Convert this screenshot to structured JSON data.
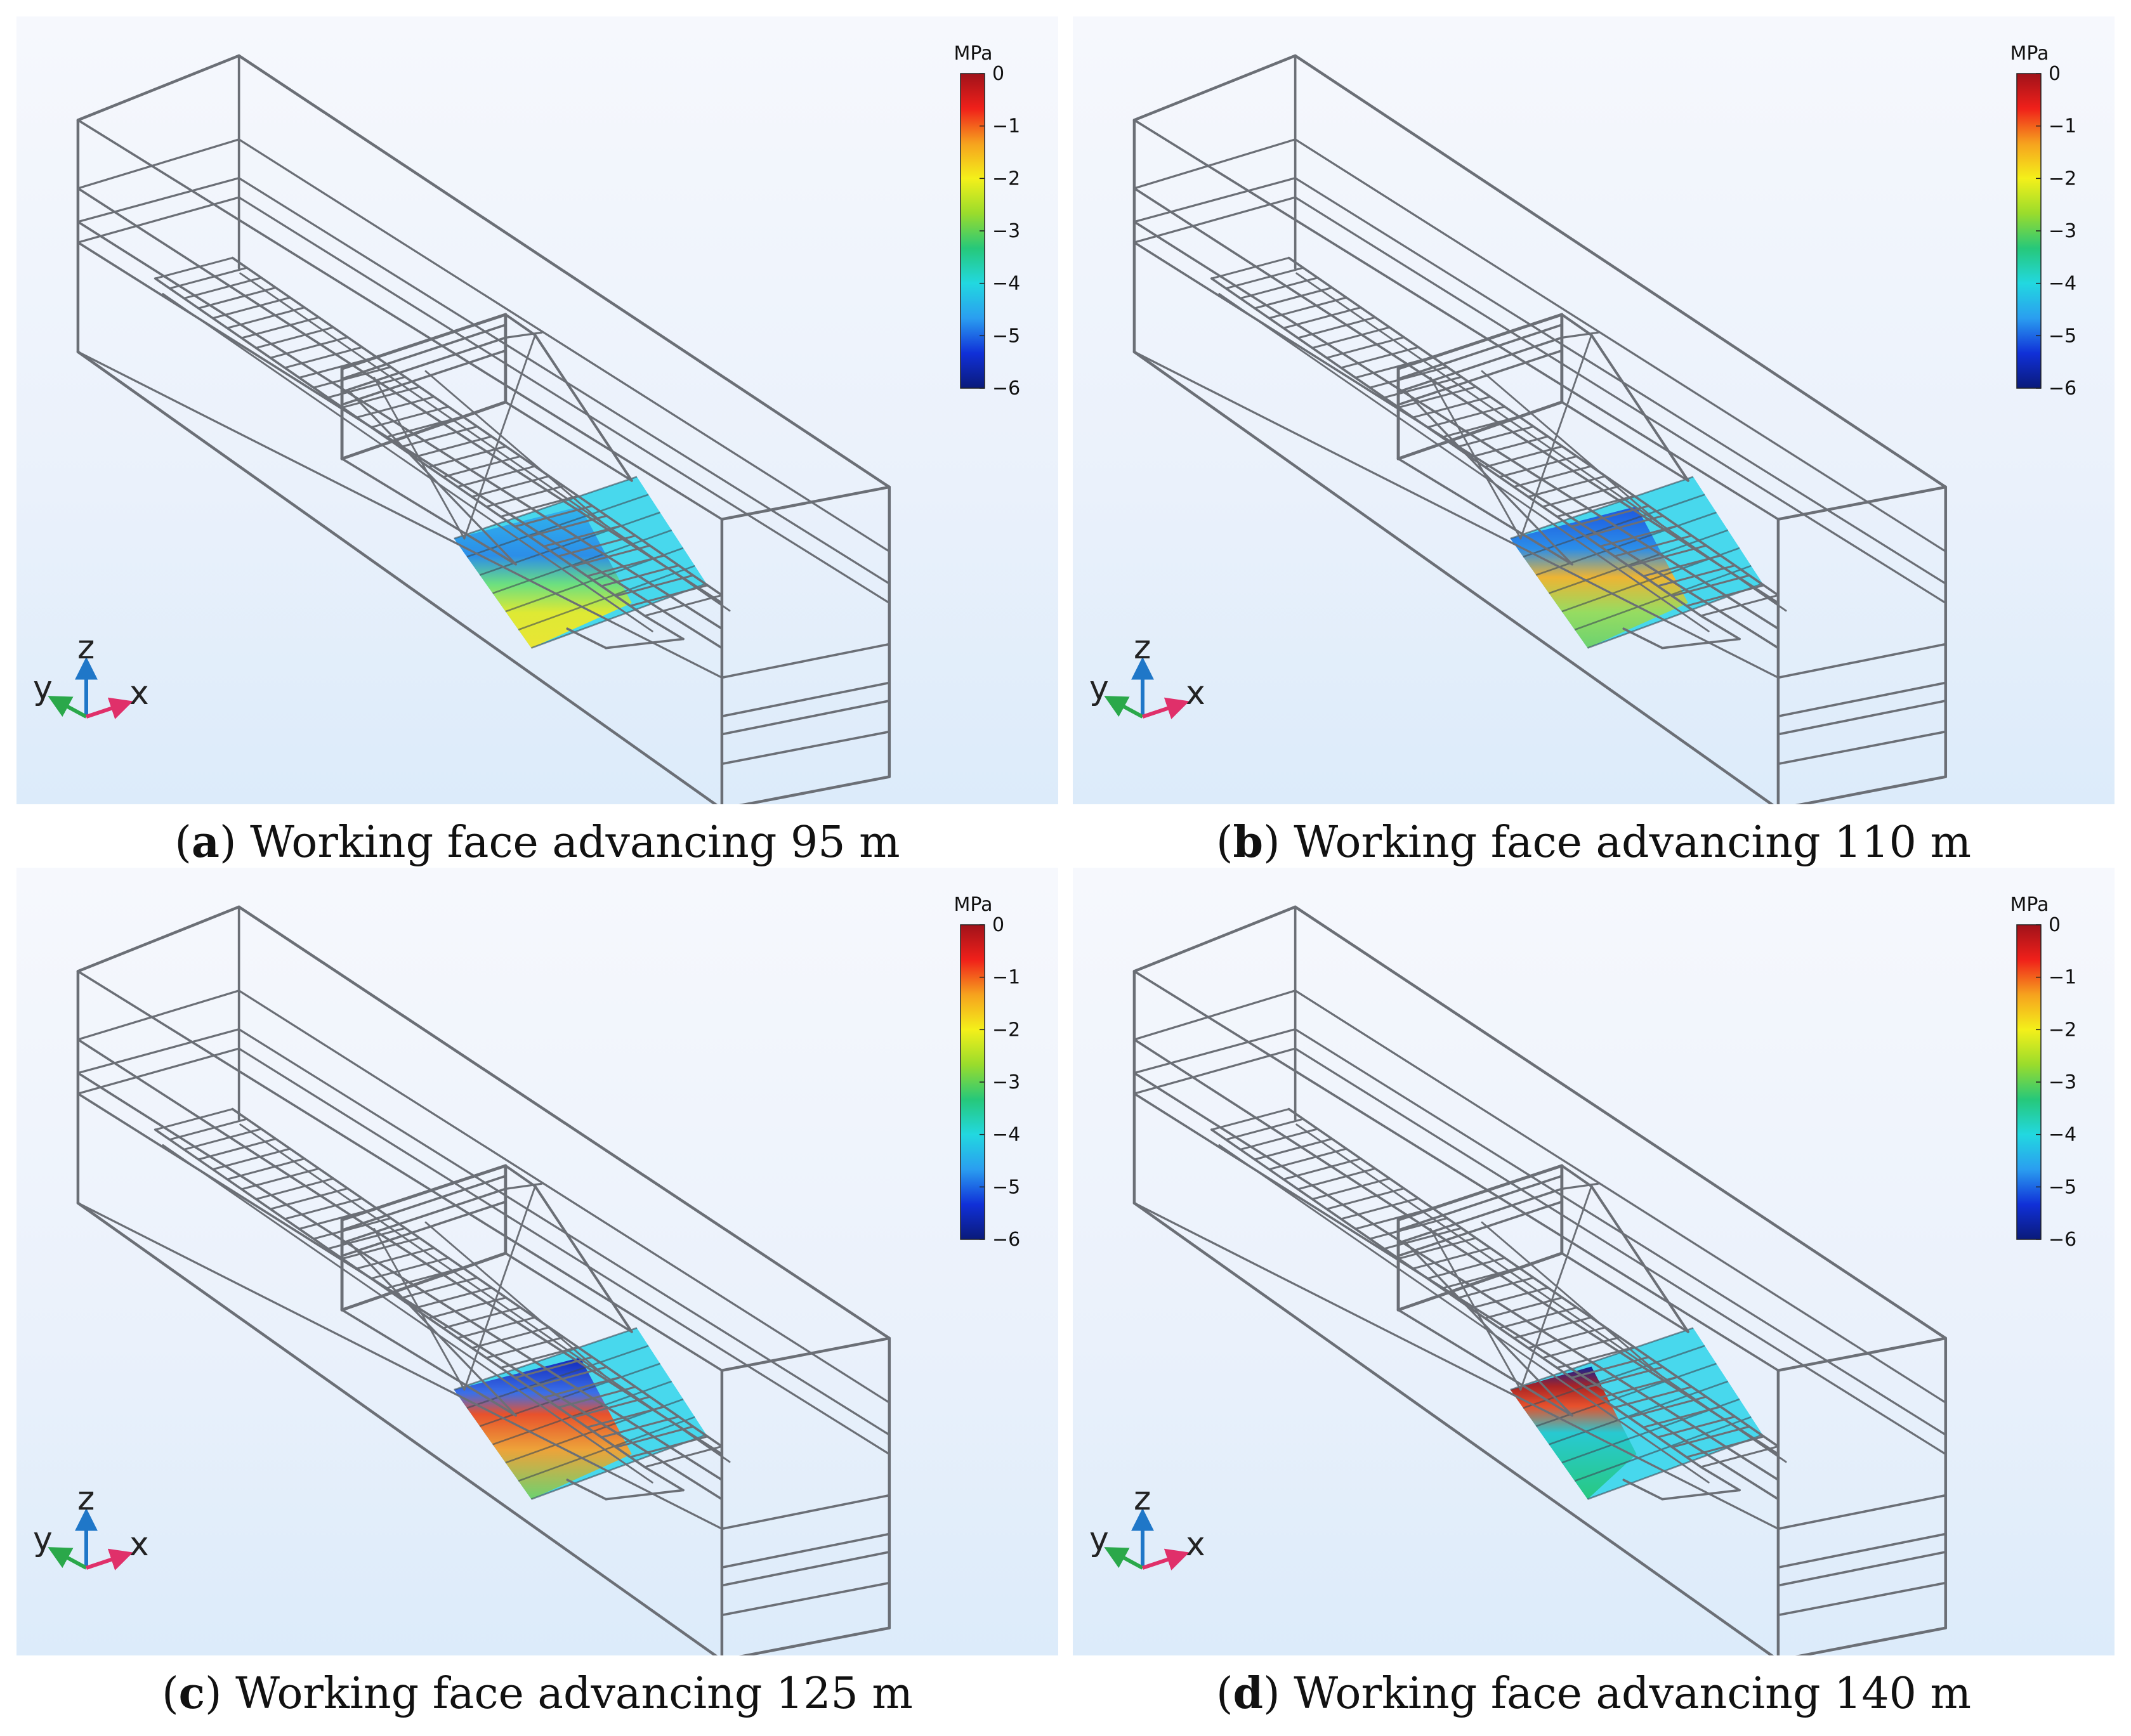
{
  "colorbar": {
    "unit": "MPa",
    "ticks": [
      "0",
      "−1",
      "−2",
      "−3",
      "−4",
      "−5",
      "−6"
    ],
    "range": [
      -6,
      0
    ]
  },
  "axes_triad": {
    "z": "z",
    "y": "y",
    "x": "x"
  },
  "panels": [
    {
      "id": "a",
      "letter": "a",
      "caption": ") Working face advancing 95 m",
      "advance_m": 95
    },
    {
      "id": "b",
      "letter": "b",
      "caption": ") Working face advancing 110 m",
      "advance_m": 110
    },
    {
      "id": "c",
      "letter": "c",
      "caption": ") Working face advancing 125 m",
      "advance_m": 125
    },
    {
      "id": "d",
      "letter": "d",
      "caption": ") Working face advancing 140 m",
      "advance_m": 140
    }
  ],
  "colors": {
    "wireframe": "#6b6f76",
    "background_top": "#f6f8fd",
    "background_bottom": "#dcebfa",
    "colormap": [
      "#0a1a7a",
      "#1030d8",
      "#2a9ef0",
      "#22d8e0",
      "#26c87a",
      "#9adc2c",
      "#f4f01a",
      "#f6a21e",
      "#f0201a",
      "#a0121a"
    ]
  }
}
